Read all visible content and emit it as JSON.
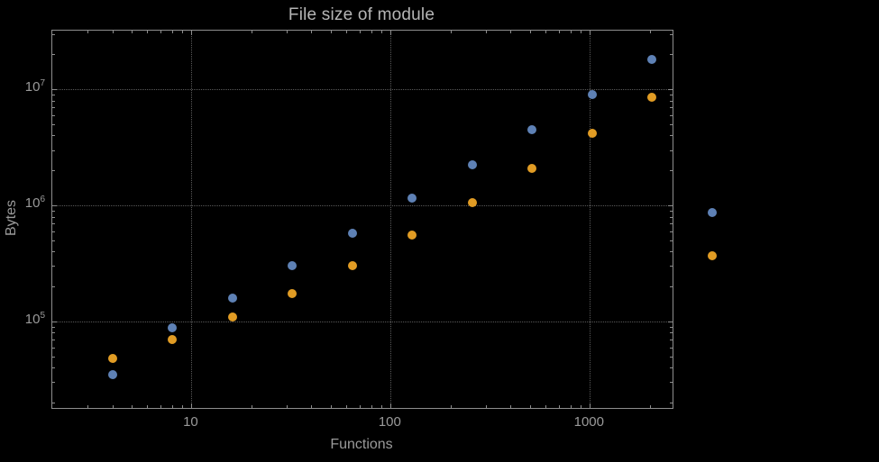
{
  "chart_data": {
    "type": "scatter",
    "title": "File size of module",
    "xlabel": "Functions",
    "ylabel": "Bytes",
    "x_scale": "log",
    "y_scale": "log",
    "xlim": [
      2,
      2600
    ],
    "ylim": [
      18000,
      32000000
    ],
    "grid": "dotted-at-decades",
    "legend": "none",
    "x": [
      4,
      8,
      16,
      32,
      64,
      128,
      256,
      512,
      1024,
      2048,
      4096
    ],
    "series": [
      {
        "name": "series-1-blue",
        "color": "#5E81B5",
        "values": [
          35000,
          88000,
          160000,
          300000,
          580000,
          1150000,
          2250000,
          4500000,
          9000000,
          18000000,
          870000
        ]
      },
      {
        "name": "series-2-orange",
        "color": "#E19C24",
        "values": [
          48000,
          70000,
          110000,
          175000,
          300000,
          560000,
          1050000,
          2100000,
          4200000,
          8500000,
          370000
        ]
      }
    ],
    "x_ticks": [
      {
        "value": 10,
        "label": "10"
      },
      {
        "value": 100,
        "label": "100"
      },
      {
        "value": 1000,
        "label": "1000"
      }
    ],
    "y_ticks": [
      {
        "value": 100000,
        "base": "10",
        "exp": "5"
      },
      {
        "value": 1000000,
        "base": "10",
        "exp": "6"
      },
      {
        "value": 10000000,
        "base": "10",
        "exp": "7"
      }
    ]
  },
  "colors": {
    "background": "#000000",
    "frame": "#8e8e8e",
    "grid": "#5a5a5a",
    "text": "#9a9a9a",
    "title": "#b5b5b5"
  }
}
